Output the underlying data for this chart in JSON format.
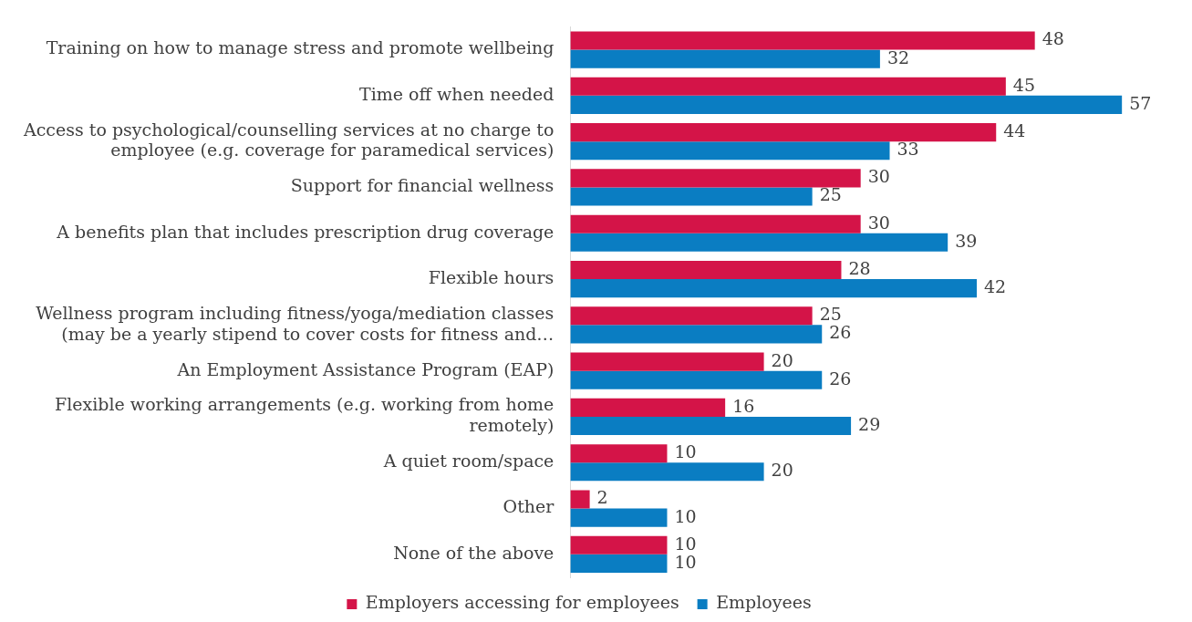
{
  "chart_data": {
    "type": "bar",
    "orientation": "horizontal",
    "categories": [
      "Training on how to manage stress and promote wellbeing",
      "Time off when needed",
      "Access to psychological/counselling services at no charge to\nemployee (e.g. coverage for paramedical services)",
      "Support for financial wellness",
      "A benefits plan that includes prescription drug coverage",
      "Flexible hours",
      "Wellness program including fitness/yoga/mediation classes\n(may be a yearly stipend to cover costs for fitness and…",
      "An Employment Assistance Program (EAP)",
      "Flexible working arrangements (e.g. working from home\nremotely)",
      "A quiet room/space",
      "Other",
      "None of the above"
    ],
    "series": [
      {
        "name": "Employers accessing for employees",
        "color": "#d41448",
        "values": [
          48,
          45,
          44,
          30,
          30,
          28,
          25,
          20,
          16,
          10,
          2,
          10
        ]
      },
      {
        "name": "Employees",
        "color": "#0a7dc2",
        "values": [
          32,
          57,
          33,
          25,
          39,
          42,
          26,
          26,
          29,
          20,
          10,
          10
        ]
      }
    ],
    "data_labels": true,
    "legend": "bottom"
  }
}
